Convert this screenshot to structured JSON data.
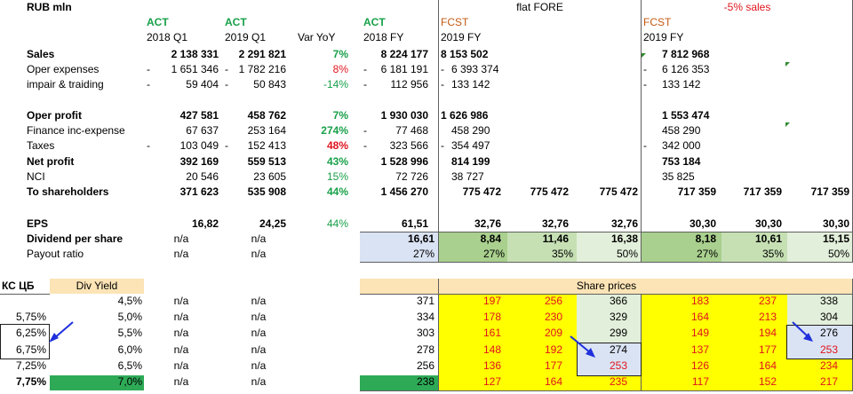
{
  "header": {
    "unit": "RUB mln",
    "act": "ACT",
    "fcst": "FCST",
    "col_2018q1": "2018 Q1",
    "col_2019q1": "2019 Q1",
    "col_var": "Var YoY",
    "col_2018fy": "2018 FY",
    "col_2019fy": "2019 FY",
    "scenario_flat": "flat FORE",
    "scenario_minus5": "-5% sales"
  },
  "rows": {
    "sales": {
      "label": "Sales",
      "q18": "2 138 331",
      "q19": "2 291 821",
      "var": "7%",
      "fy18": "8 224 177",
      "flat": "8 153 502",
      "m5": "7 812 968"
    },
    "opex": {
      "label": "Oper expenses",
      "q18s": "-",
      "q18": "1 651 346",
      "q19s": "-",
      "q19": "1 782 216",
      "var": "8%",
      "fy18s": "-",
      "fy18": "6 181 191",
      "flats": "-",
      "flat": "6 393 374",
      "m5s": "-",
      "m5": "6 126 353"
    },
    "impair": {
      "label": "impair & traiding",
      "q18s": "-",
      "q18": "59 404",
      "q19s": "-",
      "q19": "50 843",
      "var": "-14%",
      "fy18s": "-",
      "fy18": "112 956",
      "flats": "-",
      "flat": "133 142",
      "m5s": "-",
      "m5": "133 142"
    },
    "operprofit": {
      "label": "Oper profit",
      "q18": "427 581",
      "q19": "458 762",
      "var": "7%",
      "fy18": "1 930 030",
      "flat": "1 626 986",
      "m5": "1 553 474"
    },
    "finance": {
      "label": "Finance inc-expense",
      "q18": "67 637",
      "q19": "253 164",
      "var": "274%",
      "fy18s": "-",
      "fy18": "77 468",
      "flat": "458 290",
      "m5": "458 290"
    },
    "taxes": {
      "label": "Taxes",
      "q18s": "-",
      "q18": "103 049",
      "q19s": "-",
      "q19": "152 413",
      "var": "48%",
      "fy18s": "-",
      "fy18": "323 566",
      "flats": "-",
      "flat": "354 497",
      "m5s": "-",
      "m5": "342 000"
    },
    "netprofit": {
      "label": "Net profit",
      "q18": "392 169",
      "q19": "559 513",
      "var": "43%",
      "fy18": "1 528 996",
      "flat": "814 199",
      "m5": "753 184"
    },
    "nci": {
      "label": "NCI",
      "q18": "20 546",
      "q19": "23 605",
      "var": "15%",
      "fy18": "72 726",
      "flat": "38 727",
      "m5": "35 825"
    },
    "toshare": {
      "label": "To shareholders",
      "q18": "371 623",
      "q19": "535 908",
      "var": "44%",
      "fy18": "1 456 270",
      "flat": "775 472",
      "flat2": "775 472",
      "flat3": "775 472",
      "m5": "717 359",
      "m52": "717 359",
      "m53": "717 359"
    },
    "eps": {
      "label": "EPS",
      "q18": "16,82",
      "q19": "24,25",
      "var": "44%",
      "fy18": "61,51",
      "flat": "32,76",
      "flat2": "32,76",
      "flat3": "32,76",
      "m5": "30,30",
      "m52": "30,30",
      "m53": "30,30"
    },
    "dps": {
      "label": "Dividend per share",
      "q18": "n/a",
      "q19": "n/a",
      "fy18": "16,61",
      "flat": "8,84",
      "flat2": "11,46",
      "flat3": "16,38",
      "m5": "8,18",
      "m52": "10,61",
      "m53": "15,15"
    },
    "payout": {
      "label": "Payout ratio",
      "q18": "n/a",
      "q19": "n/a",
      "fy18": "27%",
      "flat": "27%",
      "flat2": "35%",
      "flat3": "50%",
      "m5": "27%",
      "m52": "35%",
      "m53": "50%"
    }
  },
  "yield_table": {
    "kc_label": "КС ЦБ",
    "div_yield_label": "Div Yield",
    "share_prices_label": "Share prices",
    "rows": [
      {
        "kc": "",
        "dy": "4,5%",
        "q18": "n/a",
        "q19": "n/a",
        "fy18": "371",
        "p": [
          "197",
          "256",
          "366",
          "183",
          "237",
          "338"
        ]
      },
      {
        "kc": "5,75%",
        "dy": "5,0%",
        "q18": "n/a",
        "q19": "n/a",
        "fy18": "334",
        "p": [
          "178",
          "230",
          "329",
          "164",
          "213",
          "304"
        ]
      },
      {
        "kc": "6,25%",
        "dy": "5,5%",
        "q18": "n/a",
        "q19": "n/a",
        "fy18": "303",
        "p": [
          "161",
          "209",
          "299",
          "149",
          "194",
          "276"
        ]
      },
      {
        "kc": "6,75%",
        "dy": "6,0%",
        "q18": "n/a",
        "q19": "n/a",
        "fy18": "278",
        "p": [
          "148",
          "192",
          "274",
          "137",
          "177",
          "253"
        ]
      },
      {
        "kc": "7,25%",
        "dy": "6,5%",
        "q18": "n/a",
        "q19": "n/a",
        "fy18": "256",
        "p": [
          "136",
          "177",
          "253",
          "126",
          "164",
          "234"
        ]
      },
      {
        "kc": "7,75%",
        "dy": "7,0%",
        "q18": "n/a",
        "q19": "n/a",
        "fy18": "238",
        "p": [
          "127",
          "164",
          "235",
          "117",
          "152",
          "217"
        ]
      }
    ]
  },
  "colors": {
    "act_green": "#18a049",
    "fcst_orange": "#c55a11",
    "negative_red": "#e0141e",
    "price_yellow": "#ffff00",
    "light_green_fill": "#e2efda",
    "mid_green_fill": "#a9d08e",
    "light_blue_fill": "#dae3f3",
    "peach_fill": "#fce4b6",
    "strong_green_fill": "#2eaa57",
    "arrow_blue": "#1f2fdc"
  }
}
